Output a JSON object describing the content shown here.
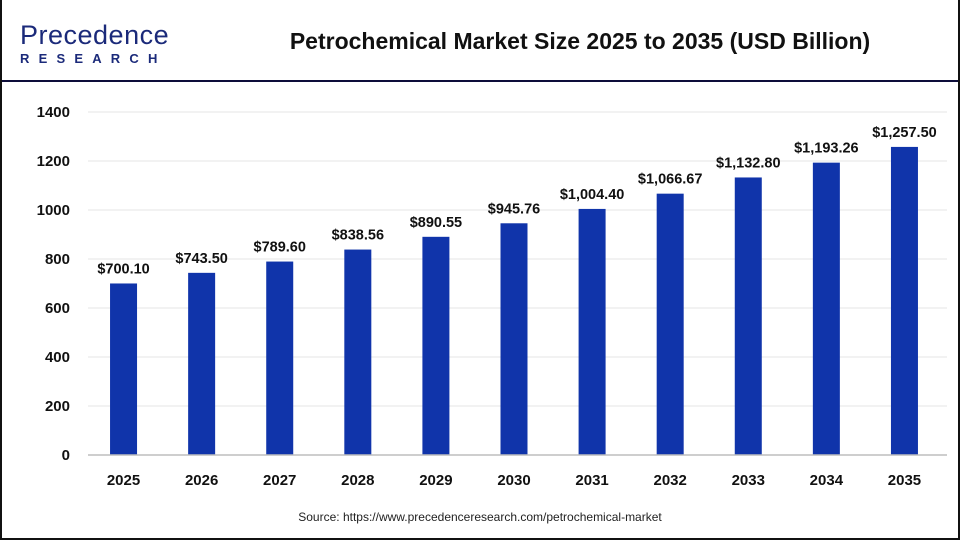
{
  "logo": {
    "line1": "Precedence",
    "line2": "RESEARCH"
  },
  "source": "Source: https://www.precedenceresearch.com/petrochemical-market",
  "colors": {
    "bar": "#1034aa",
    "grid": "#e6e6e6",
    "axis": "#bdbdbd",
    "header_line": "#0d0d3a"
  },
  "chart_data": {
    "type": "bar",
    "title": "Petrochemical Market Size 2025 to 2035 (USD Billion)",
    "categories": [
      "2025",
      "2026",
      "2027",
      "2028",
      "2029",
      "2030",
      "2031",
      "2032",
      "2033",
      "2034",
      "2035"
    ],
    "values": [
      700.1,
      743.5,
      789.6,
      838.56,
      890.55,
      945.76,
      1004.4,
      1066.67,
      1132.8,
      1193.26,
      1257.5
    ],
    "data_labels": [
      "$700.10",
      "$743.50",
      "$789.60",
      "$838.56",
      "$890.55",
      "$945.76",
      "$1,004.40",
      "$1,066.67",
      "$1,132.80",
      "$1,193.26",
      "$1,257.50"
    ],
    "yticks": [
      0,
      200,
      400,
      600,
      800,
      1000,
      1200,
      1400
    ],
    "ylim": [
      0,
      1400
    ],
    "xlabel": "",
    "ylabel": "",
    "grid": true,
    "legend": "none"
  }
}
